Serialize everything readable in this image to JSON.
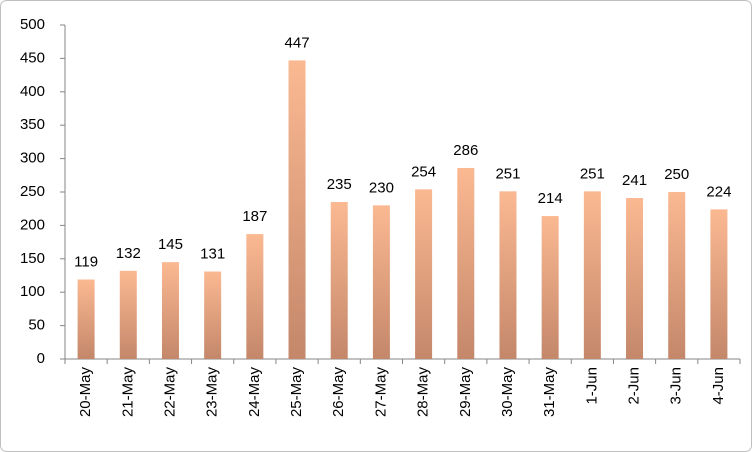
{
  "chart_data": {
    "type": "bar",
    "categories": [
      "20-May",
      "21-May",
      "22-May",
      "23-May",
      "24-May",
      "25-May",
      "26-May",
      "27-May",
      "28-May",
      "29-May",
      "30-May",
      "31-May",
      "1-Jun",
      "2-Jun",
      "3-Jun",
      "4-Jun"
    ],
    "values": [
      119,
      132,
      145,
      131,
      187,
      447,
      235,
      230,
      254,
      286,
      251,
      214,
      251,
      241,
      250,
      224
    ],
    "color": "#fbb992",
    "ylim": [
      0,
      500
    ],
    "yticks": [
      0,
      50,
      100,
      150,
      200,
      250,
      300,
      350,
      400,
      450,
      500
    ],
    "grid": false
  }
}
